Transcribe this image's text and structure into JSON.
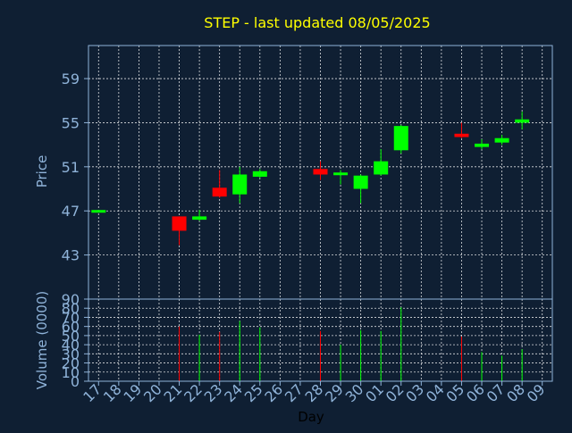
{
  "chart_data": {
    "type": "candlestick",
    "title": "STEP - last updated 08/05/2025",
    "xlabel": "Day",
    "price_ylabel": "Price",
    "volume_ylabel": "Volume (0000)",
    "x_tick_labels": [
      "17",
      "18",
      "19",
      "20",
      "21",
      "22",
      "23",
      "24",
      "25",
      "26",
      "27",
      "28",
      "29",
      "30",
      "01",
      "02",
      "03",
      "04",
      "05",
      "06",
      "07",
      "08",
      "09"
    ],
    "price_yticks": [
      43,
      47,
      51,
      55,
      59
    ],
    "price_ylim": [
      39,
      62
    ],
    "volume_yticks": [
      0,
      10,
      20,
      30,
      40,
      50,
      60,
      70,
      80,
      90
    ],
    "volume_ylim": [
      0,
      90
    ],
    "colors": {
      "up": "#00ff00",
      "down": "#ff0000",
      "background": "#0f1f33"
    },
    "candles": [
      {
        "x": "17",
        "open": 47.0,
        "close": 47.0,
        "high": 47.1,
        "low": 46.9,
        "volume": 0
      },
      {
        "x": "21",
        "open": 46.5,
        "close": 45.2,
        "high": 46.5,
        "low": 43.9,
        "volume": 60
      },
      {
        "x": "22",
        "open": 46.2,
        "close": 46.5,
        "high": 47.1,
        "low": 46.1,
        "volume": 51
      },
      {
        "x": "23",
        "open": 49.1,
        "close": 48.3,
        "high": 50.7,
        "low": 48.2,
        "volume": 54
      },
      {
        "x": "24",
        "open": 48.5,
        "close": 50.3,
        "high": 51.0,
        "low": 47.7,
        "volume": 66
      },
      {
        "x": "25",
        "open": 50.1,
        "close": 50.6,
        "high": 50.8,
        "low": 50.0,
        "volume": 59
      },
      {
        "x": "28",
        "open": 50.8,
        "close": 50.3,
        "high": 51.5,
        "low": 49.8,
        "volume": 55
      },
      {
        "x": "29",
        "open": 50.3,
        "close": 50.4,
        "high": 50.7,
        "low": 49.4,
        "volume": 40
      },
      {
        "x": "30",
        "open": 49.0,
        "close": 50.2,
        "high": 50.3,
        "low": 47.7,
        "volume": 56
      },
      {
        "x": "01",
        "open": 50.3,
        "close": 51.5,
        "high": 52.6,
        "low": 50.2,
        "volume": 55
      },
      {
        "x": "02",
        "open": 52.5,
        "close": 54.7,
        "high": 54.8,
        "low": 52.2,
        "volume": 81
      },
      {
        "x": "05",
        "open": 54.0,
        "close": 53.7,
        "high": 55.0,
        "low": 53.6,
        "volume": 49
      },
      {
        "x": "06",
        "open": 52.8,
        "close": 53.1,
        "high": 53.5,
        "low": 52.6,
        "volume": 32
      },
      {
        "x": "07",
        "open": 53.2,
        "close": 53.6,
        "high": 53.9,
        "low": 53.0,
        "volume": 28
      },
      {
        "x": "08",
        "open": 55.0,
        "close": 55.3,
        "high": 56.0,
        "low": 54.4,
        "volume": 35
      }
    ]
  }
}
